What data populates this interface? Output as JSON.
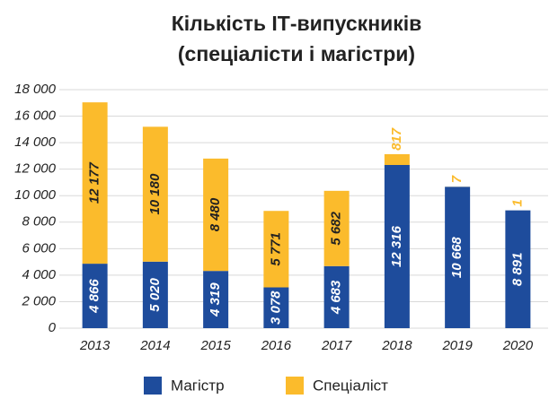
{
  "chart_data": {
    "type": "stacked_bar",
    "title": [
      "Кількість ІТ-випускників",
      "(спеціалісти і магістри)"
    ],
    "categories": [
      "2013",
      "2014",
      "2015",
      "2016",
      "2017",
      "2018",
      "2019",
      "2020"
    ],
    "series": [
      {
        "name": "Магістр",
        "color": "#1e4c9c",
        "values": [
          4866,
          5020,
          4319,
          3078,
          4683,
          12316,
          10668,
          8891
        ],
        "value_labels": [
          "4 866",
          "5 020",
          "4 319",
          "3 078",
          "4 683",
          "12 316",
          "10 668",
          "8 891"
        ]
      },
      {
        "name": "Спеціаліст",
        "color": "#fbbb2c",
        "values": [
          12177,
          10180,
          8480,
          5771,
          5682,
          817,
          7,
          1
        ],
        "value_labels": [
          "12 177",
          "10 180",
          "8 480",
          "5 771",
          "5 682",
          "817",
          "7",
          "1"
        ]
      }
    ],
    "ylim": [
      0,
      18000
    ],
    "yticks": [
      0,
      {
        "value": 2000,
        "label": "2 000"
      },
      {
        "value": 4000,
        "label": "4 000"
      },
      {
        "value": 6000,
        "label": "6 000"
      },
      {
        "value": 8000,
        "label": "8 000"
      },
      {
        "value": 10000,
        "label": "10 000"
      },
      {
        "value": 12000,
        "label": "12 000"
      },
      {
        "value": 14000,
        "label": "14 000"
      },
      {
        "value": 16000,
        "label": "16 000"
      },
      {
        "value": 18000,
        "label": "18 000"
      }
    ],
    "grid": true,
    "legend": "bottom"
  }
}
